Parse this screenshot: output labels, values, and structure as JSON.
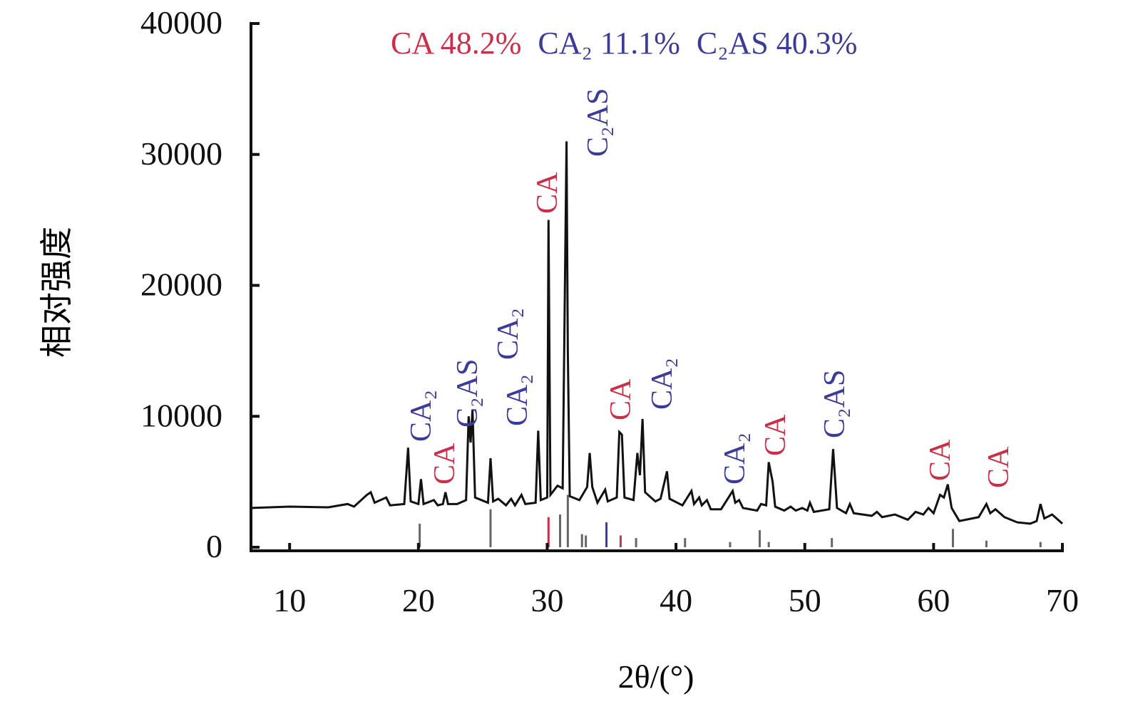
{
  "chart_data": {
    "type": "line",
    "xlabel": "2θ/(°)",
    "ylabel": "相对强度",
    "legend": [
      {
        "name": "CA 48.2%",
        "color": "#c8304a"
      },
      {
        "name": "CA₂ 11.1%",
        "color": "#3c3c96"
      },
      {
        "name": "C₂AS 40.3%",
        "color": "#3c3c96"
      }
    ],
    "xlim": [
      7,
      70
    ],
    "ylim": [
      0,
      40000
    ],
    "xticks": [
      10,
      20,
      30,
      40,
      50,
      60,
      70
    ],
    "yticks": [
      0,
      10000,
      20000,
      30000,
      40000
    ],
    "series": [
      {
        "color": "#111111",
        "x": [
          7,
          10,
          13,
          14.5,
          15,
          16,
          16.3,
          16.6,
          17.5,
          17.8,
          18.9,
          19.2,
          19.4,
          20.0,
          20.2,
          20.4,
          21.2,
          21.5,
          21.9,
          22.1,
          22.3,
          23.0,
          23.7,
          23.9,
          24.05,
          24.2,
          24.4,
          25.4,
          25.6,
          25.8,
          26.2,
          26.8,
          27.2,
          27.5,
          28.0,
          28.3,
          29.1,
          29.3,
          29.5,
          30.0,
          30.1,
          30.25,
          30.8,
          31.2,
          31.5,
          31.6,
          31.75,
          32.5,
          33.1,
          33.3,
          33.5,
          33.9,
          34.5,
          34.7,
          35.4,
          35.6,
          35.8,
          36.0,
          36.7,
          37.0,
          37.2,
          37.4,
          37.6,
          38.4,
          38.8,
          39.3,
          39.5,
          40.5,
          41.2,
          41.4,
          41.8,
          42.0,
          42.4,
          42.7,
          43.5,
          44.4,
          44.6,
          44.9,
          45.2,
          46.3,
          46.6,
          47.0,
          47.2,
          47.5,
          47.7,
          48.4,
          48.9,
          49.3,
          49.8,
          50.2,
          50.4,
          50.7,
          51.9,
          52.2,
          52.5,
          53.2,
          53.5,
          53.8,
          55.2,
          55.6,
          56.0,
          57.0,
          58.0,
          58.6,
          59.2,
          59.6,
          60.0,
          60.5,
          60.8,
          61.1,
          61.4,
          62.0,
          63.5,
          64.1,
          64.4,
          64.8,
          65.5,
          66.5,
          67.5,
          68.0,
          68.3,
          68.6,
          69.2,
          70
        ],
        "values": [
          3000,
          3100,
          3050,
          3300,
          3100,
          4000,
          4200,
          3400,
          3800,
          3200,
          3300,
          7600,
          3500,
          3300,
          5200,
          3300,
          3600,
          3200,
          3300,
          4200,
          3300,
          3300,
          3600,
          10000,
          8000,
          10500,
          3800,
          3400,
          6800,
          3500,
          3700,
          3200,
          3700,
          3200,
          4000,
          3300,
          3400,
          8900,
          3600,
          3800,
          25000,
          4000,
          4700,
          4500,
          31000,
          15000,
          3900,
          3600,
          4600,
          7200,
          4600,
          3400,
          4400,
          3500,
          3800,
          8800,
          8600,
          3800,
          3600,
          7200,
          5500,
          9800,
          4200,
          3500,
          3700,
          5800,
          3700,
          3200,
          4300,
          3300,
          3800,
          3200,
          3600,
          2900,
          2900,
          4300,
          3400,
          3600,
          3000,
          2800,
          3300,
          3200,
          6500,
          5000,
          3100,
          2800,
          3100,
          2800,
          3000,
          2800,
          3400,
          2700,
          2900,
          7500,
          3000,
          2600,
          3300,
          2600,
          2400,
          2700,
          2300,
          2500,
          2100,
          2700,
          2500,
          3000,
          2600,
          4000,
          3800,
          4800,
          3000,
          2000,
          2300,
          3300,
          2600,
          2900,
          2300,
          1900,
          1800,
          2000,
          3300,
          2200,
          2500,
          1800
        ]
      }
    ],
    "reference_peaks": {
      "x": [
        20.1,
        25.6,
        30.1,
        31.0,
        31.6,
        32.7,
        33.0,
        34.6,
        35.7,
        36.9,
        40.7,
        44.2,
        46.5,
        47.2,
        52.1,
        61.5,
        64.1,
        68.3
      ],
      "values": [
        1800,
        2900,
        2300,
        2500,
        4000,
        1000,
        900,
        1900,
        900,
        700,
        700,
        400,
        1300,
        400,
        700,
        1400,
        500,
        400
      ],
      "colors": [
        "#666666",
        "#666666",
        "#c8304a",
        "#666666",
        "#666666",
        "#666666",
        "#666666",
        "#3c3c96",
        "#c8304a",
        "#666666",
        "#666666",
        "#666666",
        "#666666",
        "#666666",
        "#666666",
        "#666666",
        "#666666",
        "#666666"
      ]
    },
    "annotations": [
      {
        "text": "CA₂",
        "color": "#3c3c96"
      },
      {
        "text": "CA",
        "color": "#c8304a"
      },
      {
        "text": "C₂AS",
        "color": "#3c3c96"
      },
      {
        "text": "CA₂",
        "color": "#3c3c96"
      },
      {
        "text": "CA₂",
        "color": "#3c3c96"
      },
      {
        "text": "CA",
        "color": "#c8304a"
      },
      {
        "text": "C₂AS",
        "color": "#3c3c96"
      },
      {
        "text": "CA",
        "color": "#c8304a"
      },
      {
        "text": "CA₂",
        "color": "#3c3c96"
      },
      {
        "text": "CA₂",
        "color": "#3c3c96"
      },
      {
        "text": "CA",
        "color": "#c8304a"
      },
      {
        "text": "C₂AS",
        "color": "#3c3c96"
      },
      {
        "text": "CA",
        "color": "#c8304a"
      },
      {
        "text": "CA",
        "color": "#c8304a"
      }
    ]
  }
}
